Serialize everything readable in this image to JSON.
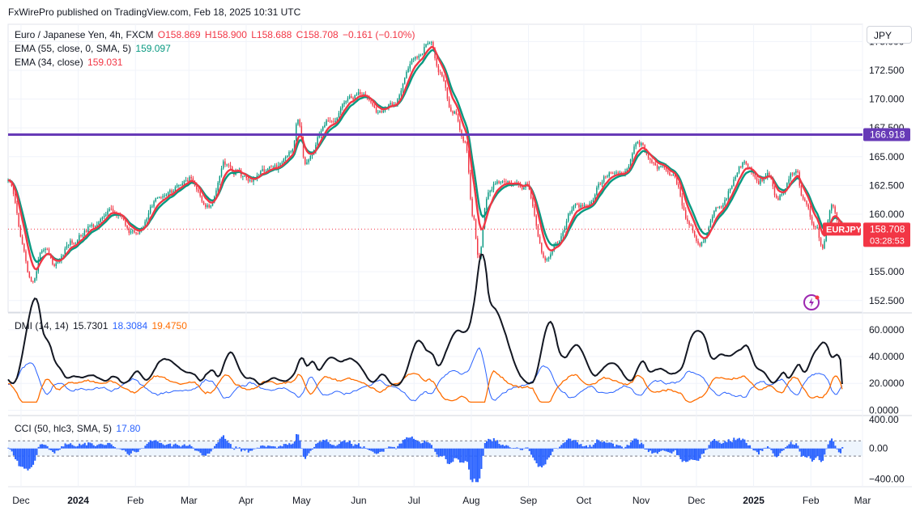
{
  "publish_text": "FxWirePro published on TradingView.com, Feb 18, 2025 10:31 UTC",
  "currency_label": "JPY",
  "main_legend": {
    "symbol": "Euro / Japanese Yen, 4h, FXCM",
    "open": "O158.869",
    "high": "H158.900",
    "low": "L158.688",
    "close": "C158.708",
    "change": "−0.161 (−0.10%)",
    "ema55_label": "EMA (55, close, 0, SMA, 5)",
    "ema55_value": "159.097",
    "ema34_label": "EMA (34, close)",
    "ema34_value": "159.031"
  },
  "dmi_legend": {
    "label": "DMI (14, 14)",
    "plus_di": "15.7301",
    "minus_di": "18.3084",
    "adx": "19.4750"
  },
  "cci_legend": {
    "label": "CCI (50, hlc3, SMA, 5)",
    "value": "17.80"
  },
  "price_axis_ticks": [
    "175.000",
    "172.500",
    "170.000",
    "167.500",
    "165.000",
    "162.500",
    "160.000",
    "155.000",
    "152.500"
  ],
  "dmi_axis_ticks": [
    "60.0000",
    "40.0000",
    "20.0000",
    "0.0000"
  ],
  "cci_axis_ticks": [
    "400.00",
    "0.00",
    "−400.00"
  ],
  "time_axis_ticks": [
    "Dec",
    "2024",
    "Feb",
    "Mar",
    "Apr",
    "May",
    "Jun",
    "Jul",
    "Aug",
    "Sep",
    "Oct",
    "Nov",
    "Dec",
    "2025",
    "Feb",
    "Mar"
  ],
  "labels": {
    "resistance": "166.918",
    "symbol_tag": "EURJPY",
    "last_price": "158.708",
    "countdown": "03:28:53"
  },
  "colors": {
    "up": "#089981",
    "down": "#f23645",
    "ema55": "#089981",
    "ema34": "#f23645",
    "resistance": "#673ab7",
    "dmi_plus": "#131722",
    "dmi_minus": "#2962ff",
    "dmi_adx": "#ff6d00",
    "cci": "#2962ff"
  },
  "chart_data": [
    {
      "type": "candlestick",
      "title": "Euro / Japanese Yen, 4h, FXCM",
      "ylim": [
        151.5,
        176.5
      ],
      "resistance_level": 166.918,
      "last_close": 158.708,
      "x_range": [
        "2023-11-24",
        "2025-03-01"
      ],
      "anchors": [
        [
          "2023-11-24",
          162.8
        ],
        [
          "2023-12-07",
          154.2
        ],
        [
          "2023-12-13",
          157.0
        ],
        [
          "2023-12-20",
          155.5
        ],
        [
          "2023-12-28",
          157.5
        ],
        [
          "2024-01-10",
          159.0
        ],
        [
          "2024-01-19",
          160.3
        ],
        [
          "2024-02-01",
          158.5
        ],
        [
          "2024-02-14",
          161.5
        ],
        [
          "2024-03-01",
          163.0
        ],
        [
          "2024-03-12",
          160.5
        ],
        [
          "2024-03-20",
          164.5
        ],
        [
          "2024-04-01",
          163.3
        ],
        [
          "2024-04-16",
          164.0
        ],
        [
          "2024-04-26",
          165.5
        ],
        [
          "2024-04-29",
          168.0
        ],
        [
          "2024-05-03",
          164.4
        ],
        [
          "2024-05-15",
          168.0
        ],
        [
          "2024-06-01",
          170.5
        ],
        [
          "2024-06-12",
          168.6
        ],
        [
          "2024-06-20",
          169.5
        ],
        [
          "2024-07-01",
          173.5
        ],
        [
          "2024-07-10",
          174.8
        ],
        [
          "2024-07-15",
          172.0
        ],
        [
          "2024-07-22",
          169.0
        ],
        [
          "2024-07-29",
          166.0
        ],
        [
          "2024-08-02",
          160.0
        ],
        [
          "2024-08-05",
          156.0
        ],
        [
          "2024-08-10",
          161.5
        ],
        [
          "2024-08-16",
          163.0
        ],
        [
          "2024-08-30",
          162.5
        ],
        [
          "2024-09-11",
          156.0
        ],
        [
          "2024-09-16",
          157.5
        ],
        [
          "2024-09-27",
          161.0
        ],
        [
          "2024-10-03",
          160.8
        ],
        [
          "2024-10-11",
          163.0
        ],
        [
          "2024-10-22",
          163.5
        ],
        [
          "2024-10-31",
          166.2
        ],
        [
          "2024-11-08",
          164.5
        ],
        [
          "2024-11-18",
          163.5
        ],
        [
          "2024-11-27",
          159.0
        ],
        [
          "2024-12-03",
          157.5
        ],
        [
          "2024-12-13",
          160.5
        ],
        [
          "2024-12-27",
          164.5
        ],
        [
          "2025-01-03",
          162.8
        ],
        [
          "2025-01-09",
          163.5
        ],
        [
          "2025-01-14",
          161.5
        ],
        [
          "2025-01-24",
          163.8
        ],
        [
          "2025-01-28",
          161.0
        ],
        [
          "2025-02-04",
          158.5
        ],
        [
          "2025-02-07",
          157.0
        ],
        [
          "2025-02-12",
          160.5
        ],
        [
          "2025-02-18",
          158.708
        ]
      ]
    },
    {
      "type": "line",
      "title": "DMI (14, 14)",
      "ylim": [
        -4,
        72
      ],
      "series": [
        {
          "name": "+DI",
          "last": 15.7301
        },
        {
          "name": "−DI",
          "last": 18.3084
        },
        {
          "name": "ADX",
          "last": 19.475
        }
      ]
    },
    {
      "type": "bar",
      "title": "CCI (50, hlc3, SMA, 5)",
      "ylim": [
        -500,
        420
      ],
      "last": 17.8,
      "band": [
        -100,
        100
      ]
    }
  ]
}
